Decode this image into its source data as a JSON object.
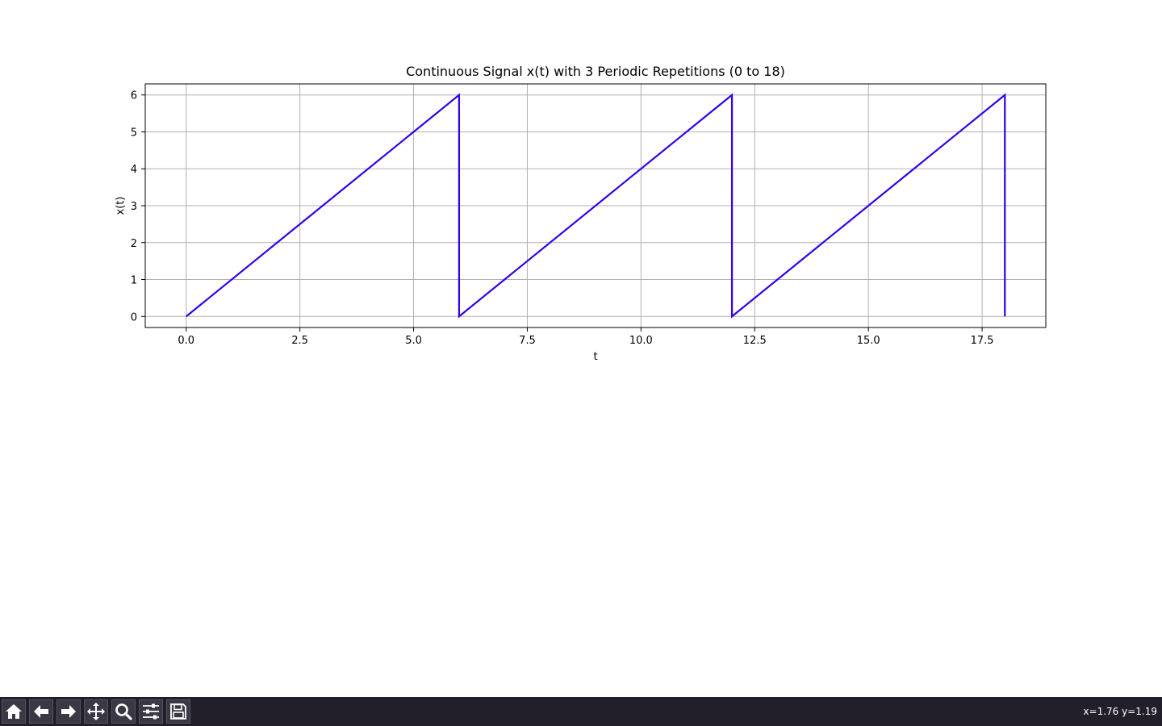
{
  "chart_data": {
    "type": "line",
    "title": "Continuous Signal x(t) with 3 Periodic Repetitions (0 to 18)",
    "xlabel": "t",
    "ylabel": "x(t)",
    "xlim": [
      -0.9,
      18.9
    ],
    "ylim": [
      -0.3,
      6.3
    ],
    "xticks": [
      0.0,
      2.5,
      5.0,
      7.5,
      10.0,
      12.5,
      15.0,
      17.5
    ],
    "xtick_labels": [
      "0.0",
      "2.5",
      "5.0",
      "7.5",
      "10.0",
      "12.5",
      "15.0",
      "17.5"
    ],
    "yticks": [
      0,
      1,
      2,
      3,
      4,
      5,
      6
    ],
    "ytick_labels": [
      "0",
      "1",
      "2",
      "3",
      "4",
      "5",
      "6"
    ],
    "grid": true,
    "series": [
      {
        "color": "#3300ee",
        "x": [
          0,
          6,
          6,
          12,
          12,
          18,
          18
        ],
        "y": [
          0,
          6,
          0,
          6,
          0,
          6,
          0
        ]
      }
    ]
  },
  "toolbar": {
    "buttons": [
      {
        "name": "home-button",
        "icon": "home-icon"
      },
      {
        "name": "back-button",
        "icon": "arrow-left-icon"
      },
      {
        "name": "forward-button",
        "icon": "arrow-right-icon"
      },
      {
        "name": "pan-button",
        "icon": "move-icon"
      },
      {
        "name": "zoom-button",
        "icon": "magnifier-icon"
      },
      {
        "name": "configure-subplots-button",
        "icon": "sliders-icon"
      },
      {
        "name": "save-button",
        "icon": "floppy-disk-icon"
      }
    ],
    "coordinates": "x=1.76 y=1.19"
  }
}
